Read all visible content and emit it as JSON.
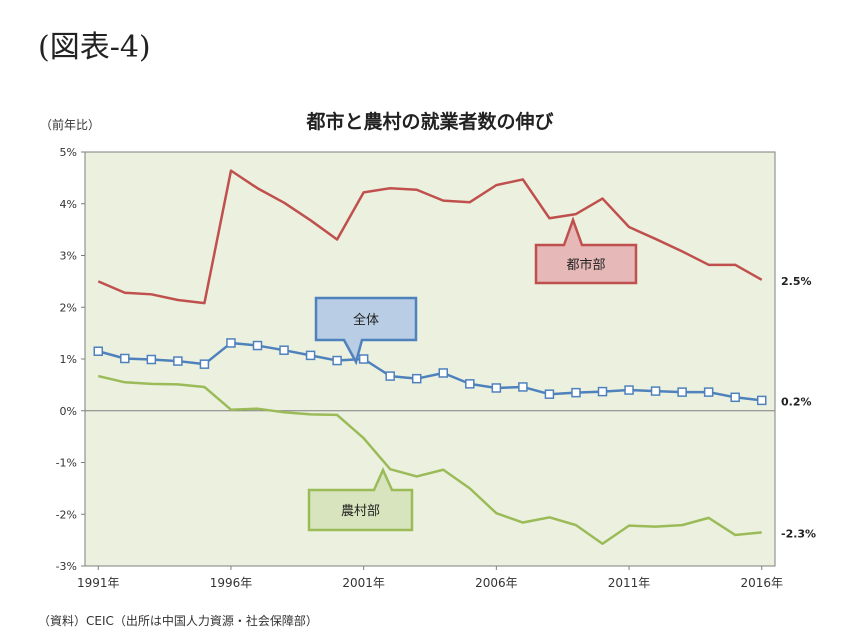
{
  "figure_label": "(図表-4)",
  "source_note": "（資料）CEIC（出所は中国人力資源・社会保障部）",
  "chart_data": {
    "type": "line",
    "title": "都市と農村の就業者数の伸び",
    "ylabel": "（前年比）",
    "xlabel": "",
    "x": [
      1991,
      1992,
      1993,
      1994,
      1995,
      1996,
      1997,
      1998,
      1999,
      2000,
      2001,
      2002,
      2003,
      2004,
      2005,
      2006,
      2007,
      2008,
      2009,
      2010,
      2011,
      2012,
      2013,
      2014,
      2015,
      2016
    ],
    "x_tick_labels": [
      "1991年",
      "1996年",
      "2001年",
      "2006年",
      "2011年",
      "2016年"
    ],
    "x_tick_values": [
      1991,
      1996,
      2001,
      2006,
      2011,
      2016
    ],
    "ylim": [
      -3,
      5
    ],
    "y_tick_labels": [
      "5%",
      "4%",
      "3%",
      "2%",
      "1%",
      "0%",
      "-1%",
      "-2%",
      "-3%"
    ],
    "y_tick_values": [
      5,
      4,
      3,
      2,
      1,
      0,
      -1,
      -2,
      -3
    ],
    "grid": false,
    "series": [
      {
        "name": "都市部",
        "color": "#c0504d",
        "marker": "none",
        "values": [
          2.5,
          2.28,
          2.25,
          2.14,
          2.08,
          4.64,
          4.3,
          4.02,
          3.68,
          3.31,
          4.22,
          4.3,
          4.27,
          4.06,
          4.03,
          4.36,
          4.47,
          3.72,
          3.8,
          4.1,
          3.55,
          3.32,
          3.08,
          2.82,
          2.82,
          2.53
        ]
      },
      {
        "name": "全体",
        "color": "#4f81bd",
        "marker": "square",
        "values": [
          1.15,
          1.01,
          0.99,
          0.96,
          0.9,
          1.31,
          1.26,
          1.17,
          1.07,
          0.97,
          1.0,
          0.67,
          0.62,
          0.73,
          0.52,
          0.44,
          0.46,
          0.32,
          0.35,
          0.37,
          0.4,
          0.38,
          0.36,
          0.36,
          0.26,
          0.2
        ]
      },
      {
        "name": "農村部",
        "color": "#9bbb59",
        "marker": "none",
        "values": [
          0.67,
          0.55,
          0.52,
          0.51,
          0.46,
          0.02,
          0.04,
          -0.03,
          -0.07,
          -0.08,
          -0.53,
          -1.13,
          -1.27,
          -1.14,
          -1.5,
          -1.98,
          -2.16,
          -2.06,
          -2.21,
          -2.57,
          -2.22,
          -2.24,
          -2.21,
          -2.07,
          -2.4,
          -2.35
        ]
      }
    ],
    "end_labels": [
      "2.5%",
      "0.2%",
      "-2.3%"
    ],
    "callouts": [
      {
        "text": "都市部",
        "series": 0
      },
      {
        "text": "全体",
        "series": 1
      },
      {
        "text": "農村部",
        "series": 2
      }
    ]
  }
}
